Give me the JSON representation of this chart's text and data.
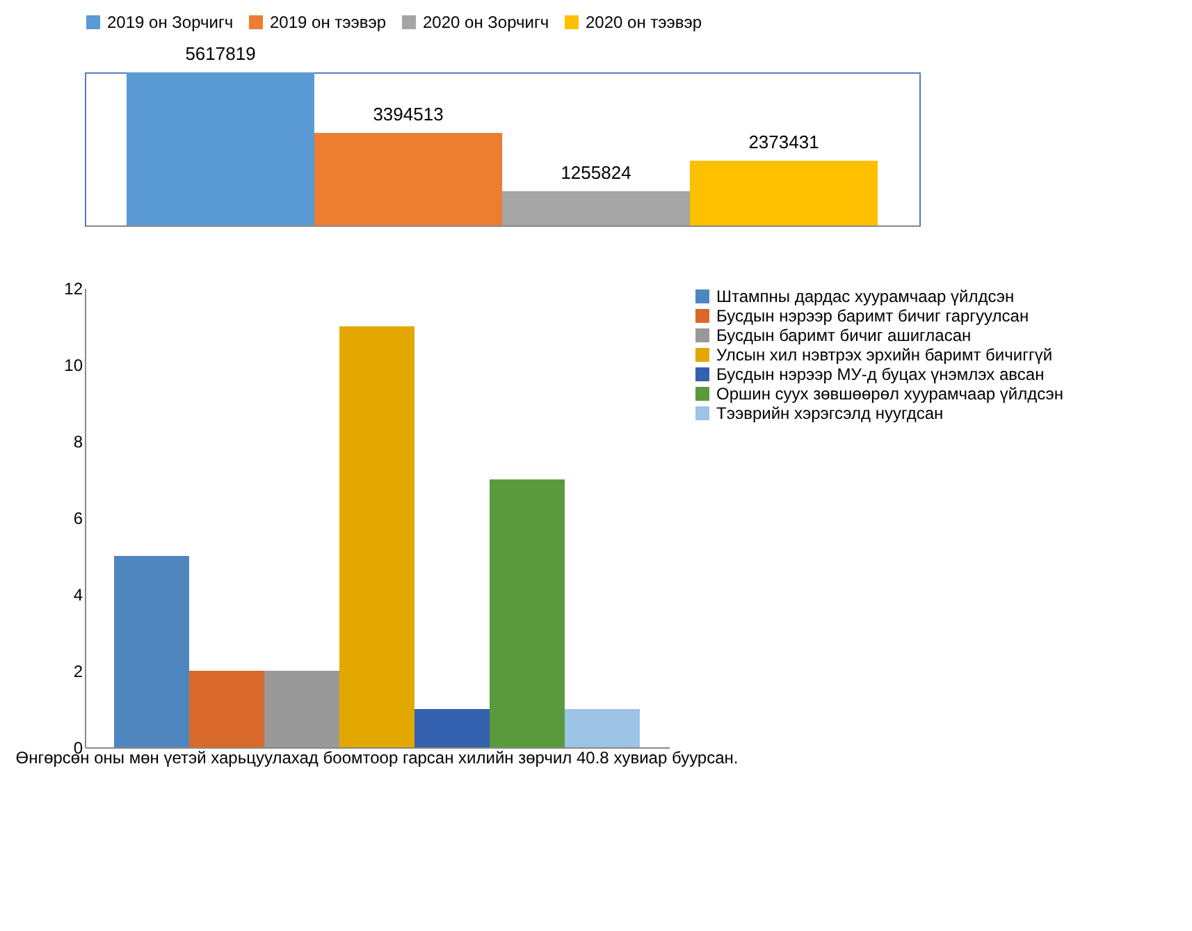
{
  "chart_data": [
    {
      "type": "bar",
      "categories": [
        null
      ],
      "legend": "top",
      "data_labels": true,
      "series": [
        {
          "name": "2019 он Зорчигч",
          "color": "#5b9bd5",
          "values": [
            5617819
          ]
        },
        {
          "name": "2019 он тээвэр",
          "color": "#ed7d31",
          "values": [
            3394513
          ]
        },
        {
          "name": "2020 он Зорчигч",
          "color": "#a5a5a5",
          "values": [
            1255824
          ]
        },
        {
          "name": "2020 он тээвэр",
          "color": "#ffc000",
          "values": [
            2373431
          ]
        }
      ]
    },
    {
      "type": "bar",
      "categories": [
        "Өнгөрсөн оны  мөн үетэй харьцуулахад боомтоор гарсан хилийн зөрчил 40.8 хувиар буурсан."
      ],
      "legend": "right",
      "ylim": [
        0,
        12
      ],
      "yticks": [
        0,
        2,
        4,
        6,
        8,
        10,
        12
      ],
      "grid": false,
      "series": [
        {
          "name": "Штампны  дардас хуурамчаар үйлдсэн",
          "color": "#4f86c0",
          "values": [
            5
          ]
        },
        {
          "name": "Бусдын нэрээр баримт  бичиг гаргуулсан",
          "color": "#d9692b",
          "values": [
            2
          ]
        },
        {
          "name": "Бусдын баримт  бичиг ашигласан",
          "color": "#999999",
          "values": [
            2
          ]
        },
        {
          "name": "Улсын  хил нэвтрэх эрхийн баримт  бичиггүй",
          "color": "#e2a800",
          "values": [
            11
          ]
        },
        {
          "name": "Бусдын нэрээр МУ-д буцах үнэмлэх авсан",
          "color": "#3461b0",
          "values": [
            1
          ]
        },
        {
          "name": "Оршин суух зөвшөөрөл хуурамчаар үйлдсэн",
          "color": "#5b9a3c",
          "values": [
            7
          ]
        },
        {
          "name": "Тээврийн хэрэгсэлд нуугдсан",
          "color": "#9dc3e6",
          "values": [
            1
          ]
        }
      ]
    }
  ]
}
